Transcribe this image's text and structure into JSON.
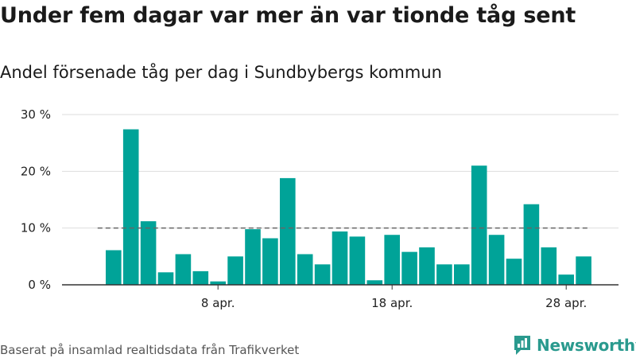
{
  "header": {
    "title": "Under fem dagar var mer än var tionde tåg sent",
    "subtitle": "Andel försenade tåg per dag i Sundbybergs kommun"
  },
  "footer": {
    "source": "Baserat på insamlad realtidsdata från Trafikverket",
    "logo_text": "Newsworthy"
  },
  "colors": {
    "bar": "#00a398",
    "reference_line": "#666666",
    "grid": "#dddddd",
    "axis": "#333333",
    "brand": "#2a9a8e"
  },
  "chart_data": {
    "type": "bar",
    "title": "Andel försenade tåg per dag i Sundbybergs kommun",
    "xlabel": "",
    "ylabel": "",
    "ylim": [
      0,
      30
    ],
    "yticks": [
      {
        "value": 0,
        "label": "0 %"
      },
      {
        "value": 10,
        "label": "10 %"
      },
      {
        "value": 20,
        "label": "20 %"
      },
      {
        "value": 30,
        "label": "30 %"
      }
    ],
    "xticks": [
      {
        "category": "8",
        "label": "8 apr."
      },
      {
        "category": "18",
        "label": "18 apr."
      },
      {
        "category": "28",
        "label": "28 apr."
      }
    ],
    "categories": [
      "2",
      "3",
      "4",
      "5",
      "6",
      "7",
      "8",
      "9",
      "10",
      "11",
      "12",
      "13",
      "14",
      "15",
      "16",
      "17",
      "18",
      "19",
      "20",
      "21",
      "22",
      "23",
      "24",
      "25",
      "26",
      "27",
      "28",
      "29"
    ],
    "values": [
      6.1,
      27.4,
      11.2,
      2.2,
      5.4,
      2.4,
      0.6,
      5.0,
      9.8,
      8.2,
      18.8,
      5.4,
      3.6,
      9.4,
      8.5,
      0.8,
      8.8,
      5.8,
      6.6,
      3.6,
      3.6,
      21.0,
      8.8,
      4.6,
      14.2,
      6.6,
      1.8,
      5.0
    ],
    "reference_line": {
      "value": 10,
      "style": "dashed"
    },
    "grid": true
  }
}
